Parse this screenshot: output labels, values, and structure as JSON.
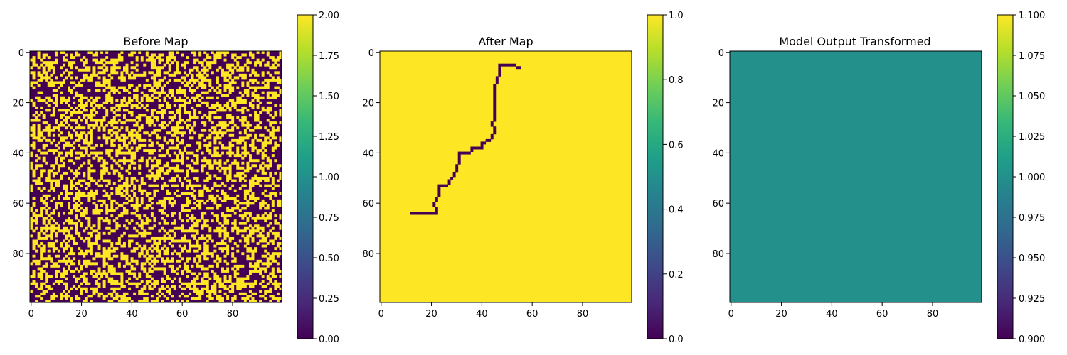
{
  "figure": {
    "background": "#ffffff",
    "colormap": "viridis",
    "colormap_stops": [
      "#440154",
      "#482878",
      "#3e4989",
      "#31688e",
      "#26828e",
      "#1f9e89",
      "#35b779",
      "#6ece58",
      "#b5de2b",
      "#fde725"
    ]
  },
  "chart_data": [
    {
      "type": "heatmap",
      "title": "Before Map",
      "xlabel": "",
      "ylabel": "",
      "grid_size": [
        100,
        100
      ],
      "xlim": [
        0,
        99
      ],
      "ylim": [
        99,
        0
      ],
      "x_ticks": [
        0,
        20,
        40,
        60,
        80
      ],
      "y_ticks": [
        0,
        20,
        40,
        60,
        80
      ],
      "value_range": [
        0,
        2
      ],
      "values_present": [
        0,
        2
      ],
      "approx_fraction_high": 0.4,
      "description_pattern": "random",
      "colorbar": {
        "ticks": [
          "0.00",
          "0.25",
          "0.50",
          "0.75",
          "1.00",
          "1.25",
          "1.50",
          "1.75",
          "2.00"
        ],
        "tick_values": [
          0,
          0.25,
          0.5,
          0.75,
          1.0,
          1.25,
          1.5,
          1.75,
          2.0
        ]
      }
    },
    {
      "type": "heatmap",
      "title": "After Map",
      "xlabel": "",
      "ylabel": "",
      "grid_size": [
        100,
        100
      ],
      "xlim": [
        0,
        99
      ],
      "ylim": [
        99,
        0
      ],
      "x_ticks": [
        0,
        20,
        40,
        60,
        80
      ],
      "y_ticks": [
        0,
        20,
        40,
        60,
        80
      ],
      "value_range": [
        0,
        1
      ],
      "background_value": 1,
      "path_value": 0,
      "path_points": [
        [
          12,
          64
        ],
        [
          22,
          64
        ],
        [
          22,
          62
        ],
        [
          21,
          61
        ],
        [
          22,
          58
        ],
        [
          23,
          56
        ],
        [
          23,
          53
        ],
        [
          26,
          53
        ],
        [
          28,
          50
        ],
        [
          29,
          48
        ],
        [
          30,
          46
        ],
        [
          31,
          43
        ],
        [
          31,
          40
        ],
        [
          35,
          40
        ],
        [
          36,
          38
        ],
        [
          40,
          38
        ],
        [
          40,
          36
        ],
        [
          43,
          35
        ],
        [
          44,
          33
        ],
        [
          45,
          31
        ],
        [
          44,
          28
        ],
        [
          45,
          26
        ],
        [
          45,
          22
        ],
        [
          45,
          18
        ],
        [
          45,
          14
        ],
        [
          46,
          11
        ],
        [
          47,
          8
        ],
        [
          47,
          5
        ],
        [
          52,
          5
        ],
        [
          55,
          6
        ]
      ],
      "colorbar": {
        "ticks": [
          "0.0",
          "0.2",
          "0.4",
          "0.6",
          "0.8",
          "1.0"
        ],
        "tick_values": [
          0,
          0.2,
          0.4,
          0.6,
          0.8,
          1.0
        ]
      }
    },
    {
      "type": "heatmap",
      "title": "Model Output Transformed",
      "xlabel": "",
      "ylabel": "",
      "grid_size": [
        100,
        100
      ],
      "xlim": [
        0,
        99
      ],
      "ylim": [
        99,
        0
      ],
      "x_ticks": [
        0,
        20,
        40,
        60,
        80
      ],
      "y_ticks": [
        0,
        20,
        40,
        60,
        80
      ],
      "value_range": [
        0.9,
        1.1
      ],
      "uniform_value": 1.0,
      "colorbar": {
        "ticks": [
          "0.900",
          "0.925",
          "0.950",
          "0.975",
          "1.000",
          "1.025",
          "1.050",
          "1.075",
          "1.100"
        ],
        "tick_values": [
          0.9,
          0.925,
          0.95,
          0.975,
          1.0,
          1.025,
          1.05,
          1.075,
          1.1
        ]
      }
    }
  ]
}
